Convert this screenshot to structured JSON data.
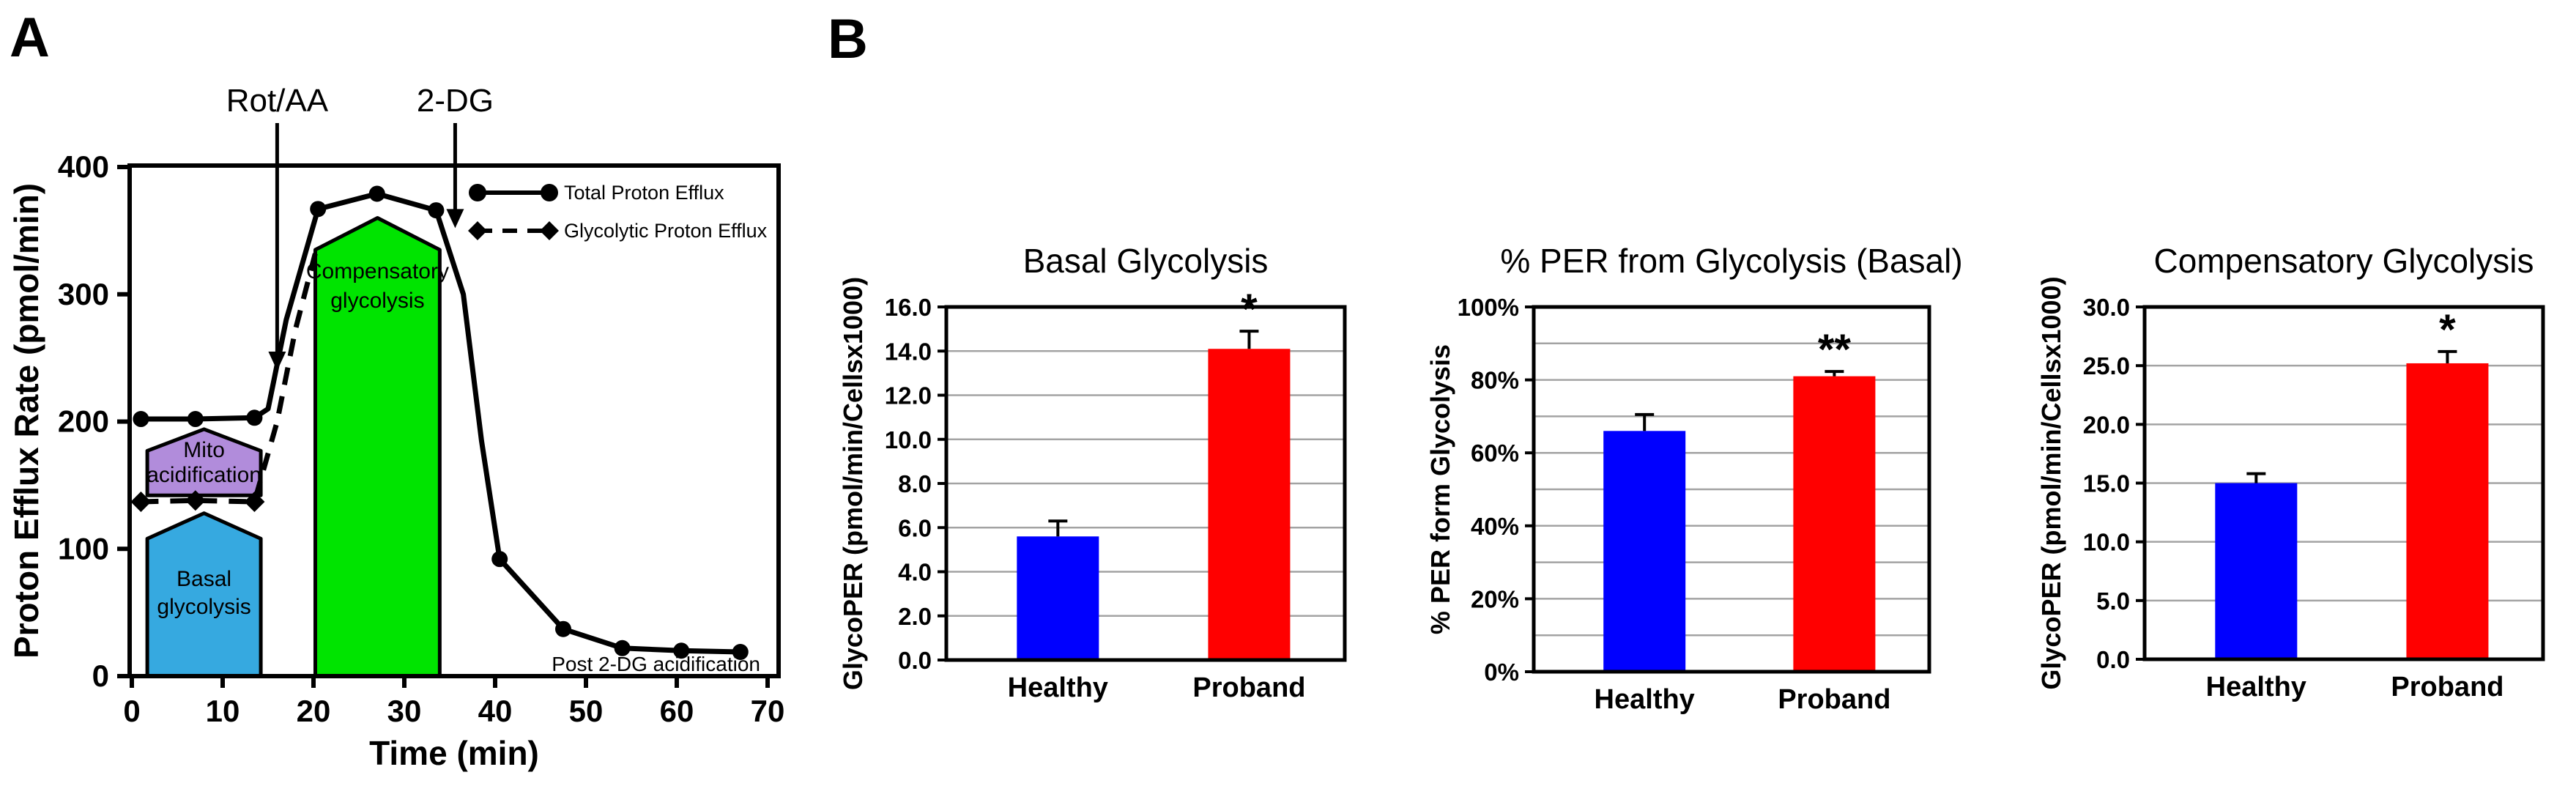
{
  "panel_labels": {
    "a": "A",
    "b": "B"
  },
  "styles": {
    "axis_color": "#000000",
    "grid_color": "#A3A3A3",
    "healthy_bar_color": "#0000FF",
    "proband_bar_color": "#FF0000",
    "basal_region_color": "#36A9E0",
    "mito_region_color": "#B18CDB",
    "compensatory_region_color": "#00E400"
  },
  "chart_data": [
    {
      "type": "line",
      "panel": "A",
      "title": "",
      "xlabel": "Time (min)",
      "ylabel": "Proton Efflux Rate (pmol/min)",
      "xlim": [
        0,
        70
      ],
      "ylim": [
        0,
        400
      ],
      "xticks": [
        0,
        10,
        20,
        30,
        40,
        50,
        60,
        70
      ],
      "yticks": [
        0,
        100,
        200,
        300,
        400
      ],
      "grid": false,
      "legend_position": "top-right",
      "legend": [
        {
          "label": "Total Proton Efflux",
          "marker": "circle",
          "line_style": "solid"
        },
        {
          "label": "Glycolytic Proton Efflux",
          "marker": "diamond",
          "line_style": "dashed"
        }
      ],
      "annotations": [
        {
          "label": "Rot/AA",
          "x": 16,
          "arrow_tip_value": 240
        },
        {
          "label": "2-DG",
          "x": 35.6,
          "arrow_tip_value": 352
        }
      ],
      "regions": [
        {
          "name": "Basal glycolysis",
          "label_lines": [
            "Basal",
            "glycolysis"
          ],
          "color_key": "basal_region_color",
          "x_start": 1.7,
          "x_end": 14.2,
          "base_value": 0,
          "corner_value": 108,
          "peak_value": 128
        },
        {
          "name": "Mito acidification",
          "label_lines": [
            "Mito",
            "acidification"
          ],
          "color_key": "mito_region_color",
          "x_start": 1.7,
          "x_end": 14.2,
          "base_value": 142,
          "corner_value": 177,
          "peak_value": 194
        },
        {
          "name": "Compensatory glycolysis",
          "label_lines": [
            "Compensatory",
            "glycolysis"
          ],
          "color_key": "compensatory_region_color",
          "x_start": 20.2,
          "x_end": 33.9,
          "base_value": 0,
          "corner_value": 335,
          "peak_value": 360
        }
      ],
      "series": [
        {
          "name": "Total Proton Efflux",
          "marker": "circle",
          "line_style": "solid",
          "points": [
            [
              1,
              202
            ],
            [
              7,
              202
            ],
            [
              13.5,
              203
            ],
            [
              15,
              210
            ],
            [
              17,
              280
            ],
            [
              20.5,
              367
            ],
            [
              27,
              379
            ],
            [
              33.5,
              366
            ],
            [
              36.5,
              300
            ],
            [
              38.5,
              185
            ],
            [
              40.5,
              92
            ],
            [
              47.5,
              37
            ],
            [
              54,
              22
            ],
            [
              60.5,
              20
            ],
            [
              67,
              19
            ]
          ],
          "marker_points": [
            [
              1,
              202
            ],
            [
              7,
              202
            ],
            [
              13.5,
              203
            ],
            [
              20.5,
              367
            ],
            [
              27,
              379
            ],
            [
              33.5,
              366
            ],
            [
              40.5,
              92
            ],
            [
              47.5,
              37
            ],
            [
              54,
              22
            ],
            [
              60.5,
              20
            ],
            [
              67,
              19
            ]
          ]
        },
        {
          "name": "Glycolytic Proton Efflux",
          "marker": "diamond",
          "line_style": "dashed",
          "points": [
            [
              1,
              137
            ],
            [
              7,
              138
            ],
            [
              13.5,
              137
            ],
            [
              16,
              200
            ],
            [
              18,
              272
            ],
            [
              20.3,
              335
            ]
          ],
          "marker_points": [
            [
              1,
              137
            ],
            [
              7,
              138
            ],
            [
              13.5,
              137
            ]
          ]
        }
      ],
      "note": {
        "text": "Post 2-DG acidification"
      }
    },
    {
      "type": "bar",
      "title": "Basal Glycolysis",
      "ylabel": "GlycoPER (pmol/min/Cellsx1000)",
      "categories": [
        "Healthy",
        "Proband"
      ],
      "values": [
        5.6,
        14.1
      ],
      "errors": [
        0.7,
        0.8
      ],
      "significance": [
        "",
        "*"
      ],
      "bar_color_keys": [
        "healthy_bar_color",
        "proband_bar_color"
      ],
      "ylim": [
        0,
        16
      ],
      "ytick_values": [
        0,
        2,
        4,
        6,
        8,
        10,
        12,
        14,
        16
      ],
      "ytick_labels": [
        "0.0",
        "2.0",
        "4.0",
        "6.0",
        "8.0",
        "10.0",
        "12.0",
        "14.0",
        "16.0"
      ],
      "grid_step": 2
    },
    {
      "type": "bar",
      "title": "% PER from Glycolysis (Basal)",
      "ylabel": "% PER form Glycolysis",
      "categories": [
        "Healthy",
        "Proband"
      ],
      "values": [
        66,
        81
      ],
      "errors": [
        4.5,
        1.3
      ],
      "significance": [
        "",
        "**"
      ],
      "bar_color_keys": [
        "healthy_bar_color",
        "proband_bar_color"
      ],
      "ylim": [
        0,
        100
      ],
      "ytick_values": [
        0,
        20,
        40,
        60,
        80,
        100
      ],
      "ytick_labels": [
        "0%",
        "20%",
        "40%",
        "60%",
        "80%",
        "100%"
      ],
      "grid_step": 10
    },
    {
      "type": "bar",
      "title": "Compensatory Glycolysis",
      "ylabel": "GlycoPER (pmol/min/Cellsx1000)",
      "categories": [
        "Healthy",
        "Proband"
      ],
      "values": [
        15,
        25.2
      ],
      "errors": [
        0.8,
        1.0
      ],
      "significance": [
        "",
        "*"
      ],
      "bar_color_keys": [
        "healthy_bar_color",
        "proband_bar_color"
      ],
      "ylim": [
        0,
        30
      ],
      "ytick_values": [
        0,
        5,
        10,
        15,
        20,
        25,
        30
      ],
      "ytick_labels": [
        "0.0",
        "5.0",
        "10.0",
        "15.0",
        "20.0",
        "25.0",
        "30.0"
      ],
      "grid_step": 5
    }
  ]
}
